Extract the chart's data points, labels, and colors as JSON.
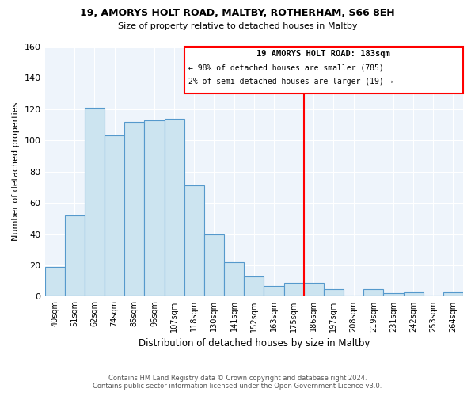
{
  "title1": "19, AMORYS HOLT ROAD, MALTBY, ROTHERHAM, S66 8EH",
  "title2": "Size of property relative to detached houses in Maltby",
  "xlabel": "Distribution of detached houses by size in Maltby",
  "ylabel": "Number of detached properties",
  "bin_labels": [
    "40sqm",
    "51sqm",
    "62sqm",
    "74sqm",
    "85sqm",
    "96sqm",
    "107sqm",
    "118sqm",
    "130sqm",
    "141sqm",
    "152sqm",
    "163sqm",
    "175sqm",
    "186sqm",
    "197sqm",
    "208sqm",
    "219sqm",
    "231sqm",
    "242sqm",
    "253sqm",
    "264sqm"
  ],
  "bar_heights": [
    19,
    52,
    121,
    103,
    112,
    113,
    114,
    71,
    40,
    22,
    13,
    7,
    9,
    9,
    5,
    0,
    5,
    2,
    3,
    0,
    3
  ],
  "bar_color": "#cce4f0",
  "bar_edge_color": "#5599cc",
  "vline_bin_index": 13,
  "annotation_title": "19 AMORYS HOLT ROAD: 183sqm",
  "annotation_line1": "← 98% of detached houses are smaller (785)",
  "annotation_line2": "2% of semi-detached houses are larger (19) →",
  "annotation_border_color": "red",
  "vline_color": "red",
  "ylim": [
    0,
    160
  ],
  "yticks": [
    0,
    20,
    40,
    60,
    80,
    100,
    120,
    140,
    160
  ],
  "footer1": "Contains HM Land Registry data © Crown copyright and database right 2024.",
  "footer2": "Contains public sector information licensed under the Open Government Licence v3.0.",
  "bg_color": "#eef4fb"
}
